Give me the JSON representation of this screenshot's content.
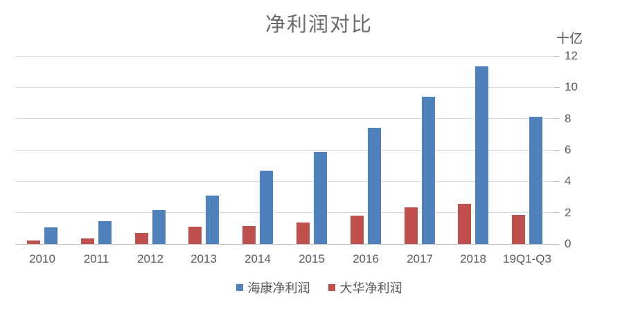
{
  "chart_data": {
    "type": "bar",
    "title": "净利润对比",
    "unit_label": "十亿",
    "categories": [
      "2010",
      "2011",
      "2012",
      "2013",
      "2014",
      "2015",
      "2016",
      "2017",
      "2018",
      "19Q1-Q3"
    ],
    "series": [
      {
        "id": "hikvision",
        "name": "海康净利润",
        "color": "#4F81BD",
        "column": 1,
        "values": [
          1.05,
          1.47,
          2.15,
          3.07,
          4.67,
          5.87,
          7.42,
          9.41,
          11.35,
          8.1
        ]
      },
      {
        "id": "dahua",
        "name": "大华净利润",
        "color": "#C0504D",
        "column": 0,
        "values": [
          0.22,
          0.36,
          0.7,
          1.1,
          1.15,
          1.35,
          1.8,
          2.35,
          2.55,
          1.85
        ]
      }
    ],
    "ylim": [
      0,
      12
    ],
    "yticks": [
      0,
      2,
      4,
      6,
      8,
      10,
      12
    ],
    "axis_side": "right",
    "grid": true,
    "legend_position": "bottom"
  },
  "colors": {
    "hikvision_blue": "#4F81BD",
    "dahua_red": "#C0504D",
    "gridline": "#d9d9d9",
    "axis_line": "#bfbfbf",
    "text_gray": "#595959"
  }
}
